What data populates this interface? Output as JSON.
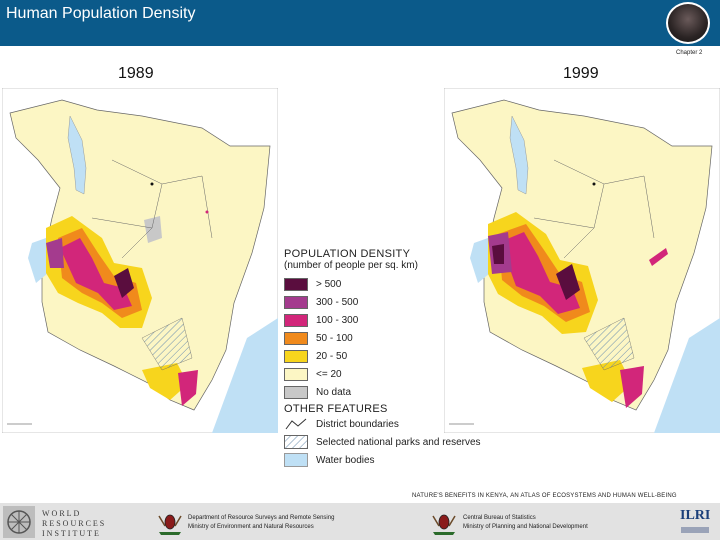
{
  "header": {
    "title": "Human Population Density"
  },
  "chapter_label": "Chapter 2",
  "maps": [
    {
      "year": "1989"
    },
    {
      "year": "1999"
    }
  ],
  "legend": {
    "title": "POPULATION DENSITY",
    "subtitle": "(number of people per sq. km)",
    "items": [
      {
        "label": "> 500",
        "color": "#5a0d3e"
      },
      {
        "label": "300 - 500",
        "color": "#a43b8e"
      },
      {
        "label": "100 - 300",
        "color": "#d2267a"
      },
      {
        "label": "50 - 100",
        "color": "#f08a1c"
      },
      {
        "label": "20 - 50",
        "color": "#f7d51d"
      },
      {
        "label": "<= 20",
        "color": "#fcf6c4"
      },
      {
        "label": "No data",
        "color": "#c8c8c8"
      }
    ],
    "features_title": "OTHER FEATURES",
    "features": [
      {
        "label": "District boundaries",
        "icon": "boundary-line-icon"
      },
      {
        "label": "Selected national parks and reserves",
        "icon": "hatched-area-icon"
      },
      {
        "label": "Water bodies",
        "icon": "water-swatch-icon",
        "color": "#bfe0f5"
      }
    ]
  },
  "footer": {
    "caption": "NATURE'S BENEFITS IN KENYA, AN ATLAS OF ECOSYSTEMS AND HUMAN WELL-BEING",
    "wri": [
      "WORLD",
      "RESOURCES",
      "INSTITUTE"
    ],
    "dept1": [
      "Department of Resource Surveys and Remote Sensing",
      "Ministry of Environment and Natural Resources"
    ],
    "dept2": [
      "Central Bureau of Statistics",
      "Ministry of Planning and National Development"
    ],
    "ilri": "ILRI"
  }
}
